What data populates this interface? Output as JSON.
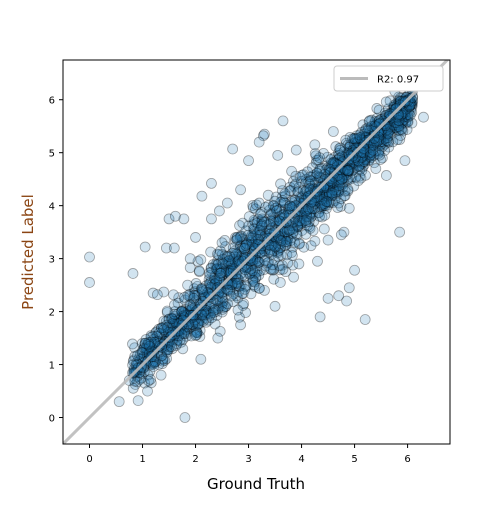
{
  "chart_data": {
    "type": "scatter",
    "title": "",
    "xlabel": "Ground Truth",
    "ylabel": "Predicted Label",
    "xlim": [
      -0.5,
      6.8
    ],
    "ylim": [
      -0.5,
      6.75
    ],
    "xticks": [
      "0",
      "1",
      "2",
      "3",
      "4",
      "5",
      "6"
    ],
    "yticks": [
      "0",
      "1",
      "2",
      "3",
      "4",
      "5",
      "6"
    ],
    "grid": false,
    "legend_position": "top-right",
    "legend": [
      {
        "label": "R2: 0.97",
        "kind": "line",
        "color": "#bbbbbb"
      }
    ],
    "reference_line": {
      "from": [
        -0.5,
        -0.5
      ],
      "to": [
        6.8,
        6.8
      ],
      "color": "#bbbbbb"
    },
    "series": [
      {
        "marker_color": "#1f77b4",
        "marker_alpha": 0.2,
        "edge_color": "#000000",
        "points": [
          [
            0.0,
            3.03
          ],
          [
            0.0,
            2.55
          ],
          [
            0.82,
            2.72
          ],
          [
            0.56,
            0.3
          ],
          [
            1.8,
            0.0
          ],
          [
            1.05,
            3.22
          ],
          [
            1.5,
            3.75
          ],
          [
            1.62,
            3.8
          ],
          [
            1.78,
            3.75
          ],
          [
            2.3,
            4.42
          ],
          [
            2.12,
            4.18
          ],
          [
            1.2,
            2.35
          ],
          [
            1.4,
            2.37
          ],
          [
            1.28,
            2.32
          ],
          [
            1.45,
            3.2
          ],
          [
            1.6,
            3.2
          ],
          [
            1.9,
            3.0
          ],
          [
            2.0,
            3.4
          ],
          [
            2.3,
            3.75
          ],
          [
            2.45,
            3.9
          ],
          [
            2.6,
            4.05
          ],
          [
            2.85,
            4.3
          ],
          [
            2.7,
            5.07
          ],
          [
            3.3,
            5.35
          ],
          [
            3.28,
            5.32
          ],
          [
            3.2,
            5.2
          ],
          [
            3.65,
            5.6
          ],
          [
            3.55,
            4.95
          ],
          [
            3.9,
            5.05
          ],
          [
            4.25,
            5.15
          ],
          [
            4.6,
            5.4
          ],
          [
            3.0,
            4.85
          ],
          [
            2.5,
            3.3
          ],
          [
            3.1,
            2.5
          ],
          [
            3.3,
            2.4
          ],
          [
            3.6,
            2.55
          ],
          [
            3.85,
            2.65
          ],
          [
            3.95,
            2.9
          ],
          [
            4.3,
            2.95
          ],
          [
            4.5,
            3.35
          ],
          [
            3.5,
            2.1
          ],
          [
            4.5,
            2.25
          ],
          [
            4.35,
            1.9
          ],
          [
            4.7,
            2.3
          ],
          [
            4.9,
            2.45
          ],
          [
            5.0,
            2.78
          ],
          [
            5.2,
            1.85
          ],
          [
            5.85,
            3.5
          ],
          [
            4.85,
            2.2
          ],
          [
            4.8,
            3.5
          ],
          [
            4.75,
            3.45
          ],
          [
            4.9,
            3.95
          ],
          [
            4.7,
            4.05
          ],
          [
            6.3,
            5.67
          ],
          [
            5.95,
            4.85
          ],
          [
            5.6,
            4.57
          ],
          [
            5.4,
            4.7
          ],
          [
            1.15,
            0.72
          ],
          [
            1.35,
            0.8
          ],
          [
            0.75,
            0.7
          ],
          [
            1.05,
            1.4
          ],
          [
            2.0,
            1.55
          ],
          [
            2.1,
            1.1
          ],
          [
            2.42,
            1.5
          ],
          [
            2.85,
            1.75
          ],
          [
            2.1,
            2.98
          ],
          [
            1.9,
            2.83
          ],
          [
            1.85,
            2.5
          ]
        ]
      }
    ],
    "dense_band": {
      "note": "",
      "x_range": [
        0.8,
        6.1
      ],
      "slope": 0.96,
      "intercept": 0.1
    }
  }
}
